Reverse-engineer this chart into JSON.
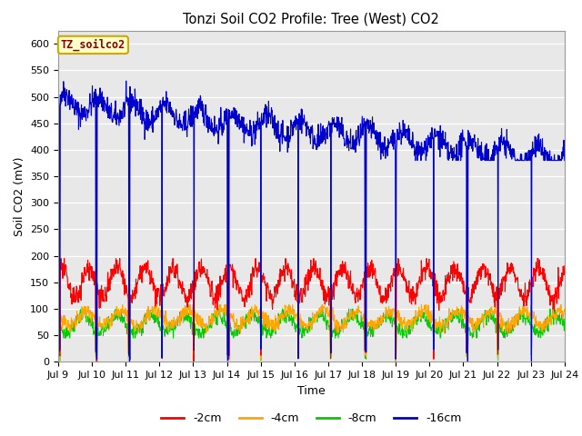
{
  "title": "Tonzi Soil CO2 Profile: Tree (West) CO2",
  "xlabel": "Time",
  "ylabel": "Soil CO2 (mV)",
  "ylim": [
    0,
    625
  ],
  "yticks": [
    0,
    50,
    100,
    150,
    200,
    250,
    300,
    350,
    400,
    450,
    500,
    550,
    600
  ],
  "x_start_day": 9,
  "x_end_day": 24,
  "x_tick_days": [
    9,
    10,
    11,
    12,
    13,
    14,
    15,
    16,
    17,
    18,
    19,
    20,
    21,
    22,
    23,
    24
  ],
  "colors": {
    "2cm": "#ff0000",
    "4cm": "#ffa500",
    "8cm": "#00cc00",
    "16cm": "#0000cc"
  },
  "legend_labels": [
    "-2cm",
    "-4cm",
    "-8cm",
    "-16cm"
  ],
  "legend_box_label": "TZ_soilco2",
  "legend_box_color": "#ffffcc",
  "legend_box_edge": "#ccaa00",
  "bg_color": "#e8e8e8",
  "grid_color": "#ffffff",
  "random_seed": 42,
  "figsize": [
    6.4,
    4.8
  ],
  "dpi": 100
}
